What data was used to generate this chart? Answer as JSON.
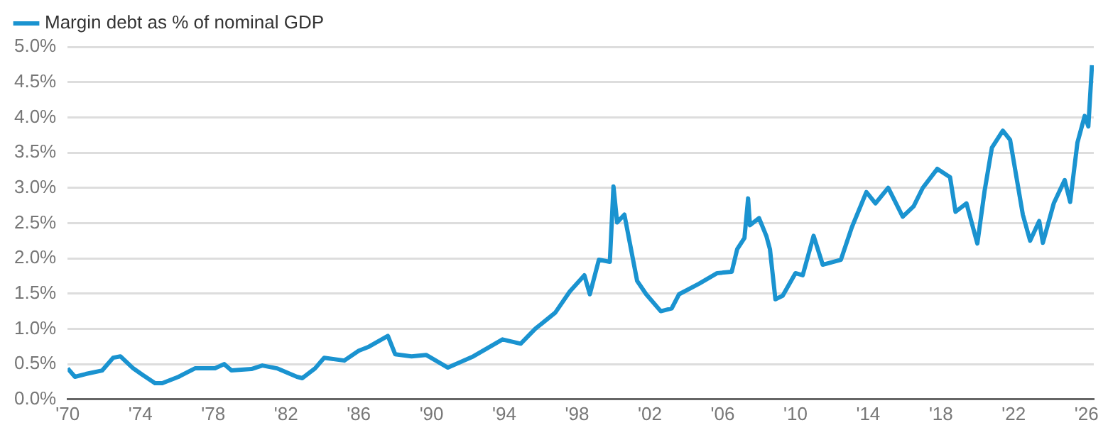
{
  "chart_data": {
    "type": "line",
    "legend": "top left",
    "grid": "y",
    "marker": "none",
    "line_style": "solid",
    "xlim": [
      1970,
      2026.4
    ],
    "ylim": [
      0,
      5
    ],
    "xticks": [
      {
        "value": 1970,
        "label": "'70"
      },
      {
        "value": 1974,
        "label": "'74"
      },
      {
        "value": 1978,
        "label": "'78"
      },
      {
        "value": 1982,
        "label": "'82"
      },
      {
        "value": 1986,
        "label": "'86"
      },
      {
        "value": 1990,
        "label": "'90"
      },
      {
        "value": 1994,
        "label": "'94"
      },
      {
        "value": 1998,
        "label": "'98"
      },
      {
        "value": 2002,
        "label": "'02"
      },
      {
        "value": 2006,
        "label": "'06"
      },
      {
        "value": 2010,
        "label": "'10"
      },
      {
        "value": 2014,
        "label": "'14"
      },
      {
        "value": 2018,
        "label": "'18"
      },
      {
        "value": 2022,
        "label": "'22"
      },
      {
        "value": 2026,
        "label": "'26"
      }
    ],
    "yticks": [
      {
        "value": 0,
        "label": "0.0%"
      },
      {
        "value": 0.5,
        "label": "0.5%"
      },
      {
        "value": 1,
        "label": "1.0%"
      },
      {
        "value": 1.5,
        "label": "1.5%"
      },
      {
        "value": 2,
        "label": "2.0%"
      },
      {
        "value": 2.5,
        "label": "2.5%"
      },
      {
        "value": 3,
        "label": "3.0%"
      },
      {
        "value": 3.5,
        "label": "3.5%"
      },
      {
        "value": 4,
        "label": "4.0%"
      },
      {
        "value": 4.5,
        "label": "4.5%"
      },
      {
        "value": 5,
        "label": "5.0%"
      }
    ],
    "series": [
      {
        "name": "Margin debt as % of nominal GDP",
        "color": "#1a93d0",
        "x": [
          1970.0,
          1970.4,
          1971.0,
          1971.9,
          1972.5,
          1972.9,
          1973.6,
          1974.1,
          1974.8,
          1975.2,
          1976.1,
          1977.0,
          1978.1,
          1978.6,
          1979.0,
          1980.1,
          1980.7,
          1981.5,
          1982.6,
          1982.9,
          1983.6,
          1984.1,
          1985.2,
          1986.0,
          1986.5,
          1987.6,
          1988.0,
          1988.9,
          1989.7,
          1990.9,
          1992.3,
          1993.9,
          1994.9,
          1995.7,
          1996.8,
          1997.6,
          1998.4,
          1998.7,
          1999.2,
          1999.8,
          2000.0,
          2000.2,
          2000.6,
          2001.3,
          2001.8,
          2002.6,
          2003.2,
          2003.6,
          2004.7,
          2005.7,
          2006.5,
          2006.8,
          2007.2,
          2007.4,
          2007.5,
          2008.0,
          2008.4,
          2008.6,
          2008.9,
          2009.3,
          2010.0,
          2010.4,
          2011.0,
          2011.5,
          2012.5,
          2013.1,
          2013.9,
          2014.4,
          2015.1,
          2015.9,
          2016.5,
          2017.0,
          2017.8,
          2018.5,
          2018.8,
          2019.4,
          2020.0,
          2020.4,
          2020.8,
          2021.4,
          2021.8,
          2022.5,
          2022.9,
          2023.4,
          2023.6,
          2024.2,
          2024.8,
          2025.1,
          2025.5,
          2025.9,
          2026.1,
          2026.3
        ],
        "values": [
          0.44,
          0.32,
          0.36,
          0.41,
          0.59,
          0.61,
          0.44,
          0.35,
          0.23,
          0.23,
          0.32,
          0.44,
          0.44,
          0.5,
          0.41,
          0.43,
          0.48,
          0.44,
          0.32,
          0.3,
          0.44,
          0.59,
          0.55,
          0.69,
          0.74,
          0.9,
          0.64,
          0.61,
          0.63,
          0.45,
          0.61,
          0.85,
          0.79,
          1.0,
          1.23,
          1.53,
          1.76,
          1.49,
          1.98,
          1.95,
          3.02,
          2.51,
          2.62,
          1.68,
          1.49,
          1.25,
          1.29,
          1.49,
          1.64,
          1.79,
          1.81,
          2.13,
          2.29,
          2.85,
          2.47,
          2.57,
          2.32,
          2.13,
          1.42,
          1.47,
          1.79,
          1.76,
          2.32,
          1.91,
          1.98,
          2.44,
          2.94,
          2.78,
          3.0,
          2.59,
          2.74,
          3.0,
          3.27,
          3.15,
          2.66,
          2.78,
          2.21,
          2.96,
          3.57,
          3.81,
          3.68,
          2.62,
          2.25,
          2.53,
          2.22,
          2.78,
          3.11,
          2.8,
          3.64,
          4.02,
          3.87,
          4.74
        ]
      }
    ]
  }
}
